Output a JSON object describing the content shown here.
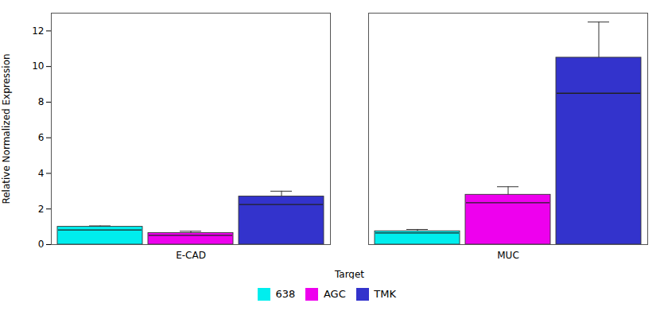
{
  "chart_data": {
    "type": "bar",
    "xlabel": "Target",
    "ylabel": "Relative Normalized Expression",
    "categories": [
      "E-CAD",
      "MUC"
    ],
    "series": [
      {
        "name": "638",
        "color": "#00eeee",
        "values": [
          1.0,
          0.75
        ],
        "errors": [
          0.05,
          0.1
        ],
        "medians": [
          0.82,
          0.65
        ]
      },
      {
        "name": "AGC",
        "color": "#ee00ee",
        "values": [
          0.65,
          2.8
        ],
        "errors": [
          0.1,
          0.45
        ],
        "medians": [
          0.52,
          2.35
        ]
      },
      {
        "name": "TMK",
        "color": "#3333cc",
        "values": [
          2.7,
          10.5
        ],
        "errors": [
          0.3,
          2.0
        ],
        "medians": [
          2.25,
          8.5
        ]
      }
    ],
    "ylim": [
      0,
      13
    ],
    "yticks": [
      0,
      2,
      4,
      6,
      8,
      10,
      12
    ],
    "grid": false,
    "legend": "bottom"
  }
}
